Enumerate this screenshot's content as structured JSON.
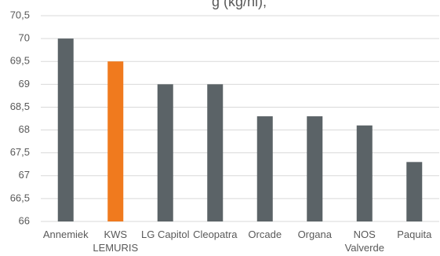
{
  "chart_data": {
    "type": "bar",
    "title": "g (kg/hl),",
    "categories": [
      "Annemiek",
      "KWS\nLEMURIS",
      "LG Capitol",
      "Cleopatra",
      "Orcade",
      "Organa",
      "NOS\nValverde",
      "Paquita"
    ],
    "values": [
      70,
      69.5,
      69,
      69,
      68.3,
      68.3,
      68.1,
      67.3
    ],
    "colors": [
      "#5b6367",
      "#f07a1e",
      "#5b6367",
      "#5b6367",
      "#5b6367",
      "#5b6367",
      "#5b6367",
      "#5b6367"
    ],
    "ylim": [
      66,
      70.5
    ],
    "yticks": [
      66,
      {
        "value": 66.5,
        "label": "66,5"
      },
      67,
      {
        "value": 67.5,
        "label": "67,5"
      },
      68,
      {
        "value": 68.5,
        "label": "68,5"
      },
      69,
      {
        "value": 69.5,
        "label": "69,5"
      },
      70,
      {
        "value": 70.5,
        "label": "70,5"
      }
    ],
    "grid": true
  }
}
